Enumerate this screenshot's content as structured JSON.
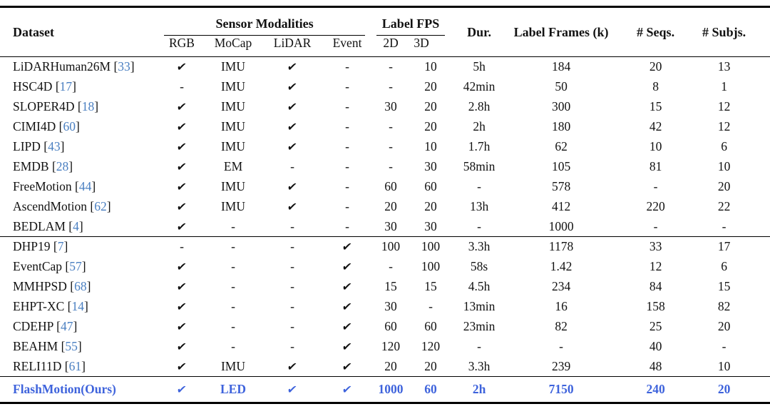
{
  "colors": {
    "citation_blue": "#4a7fc1",
    "highlight_blue": "#3E63DC",
    "text": "#121212",
    "rule": "#000000"
  },
  "check_symbol": "✔",
  "dash": "-",
  "header": {
    "dataset": "Dataset",
    "groups": [
      {
        "label": "Sensor Modalities",
        "cols": [
          "RGB",
          "MoCap",
          "LiDAR",
          "Event"
        ]
      },
      {
        "label": "Label FPS",
        "cols": [
          "2D",
          "3D"
        ]
      }
    ],
    "simple": [
      "Dur.",
      "Label Frames (k)",
      "# Seqs.",
      "# Subjs."
    ]
  },
  "rows_group1": [
    {
      "name": "LiDARHuman26M",
      "cite": "33",
      "cells": [
        "✔",
        "IMU",
        "✔",
        "-",
        "-",
        "10",
        "5h",
        "184",
        "20",
        "13"
      ]
    },
    {
      "name": "HSC4D",
      "cite": "17",
      "cells": [
        "-",
        "IMU",
        "✔",
        "-",
        "-",
        "20",
        "42min",
        "50",
        "8",
        "1"
      ]
    },
    {
      "name": "SLOPER4D",
      "cite": "18",
      "cells": [
        "✔",
        "IMU",
        "✔",
        "-",
        "30",
        "20",
        "2.8h",
        "300",
        "15",
        "12"
      ]
    },
    {
      "name": "CIMI4D",
      "cite": "60",
      "cells": [
        "✔",
        "IMU",
        "✔",
        "-",
        "-",
        "20",
        "2h",
        "180",
        "42",
        "12"
      ]
    },
    {
      "name": "LIPD",
      "cite": "43",
      "cells": [
        "✔",
        "IMU",
        "✔",
        "-",
        "-",
        "10",
        "1.7h",
        "62",
        "10",
        "6"
      ]
    },
    {
      "name": "EMDB",
      "cite": "28",
      "cells": [
        "✔",
        "EM",
        "-",
        "-",
        "-",
        "30",
        "58min",
        "105",
        "81",
        "10"
      ]
    },
    {
      "name": "FreeMotion",
      "cite": "44",
      "cells": [
        "✔",
        "IMU",
        "✔",
        "-",
        "60",
        "60",
        "-",
        "578",
        "-",
        "20"
      ]
    },
    {
      "name": "AscendMotion",
      "cite": "62",
      "cells": [
        "✔",
        "IMU",
        "✔",
        "-",
        "20",
        "20",
        "13h",
        "412",
        "220",
        "22"
      ]
    },
    {
      "name": "BEDLAM",
      "cite": "4",
      "cells": [
        "✔",
        "-",
        "-",
        "-",
        "30",
        "30",
        "-",
        "1000",
        "-",
        "-"
      ]
    }
  ],
  "rows_group2": [
    {
      "name": "DHP19",
      "cite": "7",
      "cells": [
        "-",
        "-",
        "-",
        "✔",
        "100",
        "100",
        "3.3h",
        "1178",
        "33",
        "17"
      ]
    },
    {
      "name": "EventCap",
      "cite": "57",
      "cells": [
        "✔",
        "-",
        "-",
        "✔",
        "-",
        "100",
        "58s",
        "1.42",
        "12",
        "6"
      ]
    },
    {
      "name": "MMHPSD",
      "cite": "68",
      "cells": [
        "✔",
        "-",
        "-",
        "✔",
        "15",
        "15",
        "4.5h",
        "234",
        "84",
        "15"
      ]
    },
    {
      "name": "EHPT-XC",
      "cite": "14",
      "cells": [
        "✔",
        "-",
        "-",
        "✔",
        "30",
        "-",
        "13min",
        "16",
        "158",
        "82"
      ]
    },
    {
      "name": "CDEHP",
      "cite": "47",
      "cells": [
        "✔",
        "-",
        "-",
        "✔",
        "60",
        "60",
        "23min",
        "82",
        "25",
        "20"
      ]
    },
    {
      "name": "BEAHM",
      "cite": "55",
      "cells": [
        "✔",
        "-",
        "-",
        "✔",
        "120",
        "120",
        "-",
        "-",
        "40",
        "-"
      ]
    },
    {
      "name": "RELI11D",
      "cite": "61",
      "cells": [
        "✔",
        "IMU",
        "✔",
        "✔",
        "20",
        "20",
        "3.3h",
        "239",
        "48",
        "10"
      ]
    }
  ],
  "highlight_row": {
    "name": "FlashMotion(Ours)",
    "cite": "",
    "cells": [
      "✔",
      "LED",
      "✔",
      "✔",
      "1000",
      "60",
      "2h",
      "7150",
      "240",
      "20"
    ]
  }
}
